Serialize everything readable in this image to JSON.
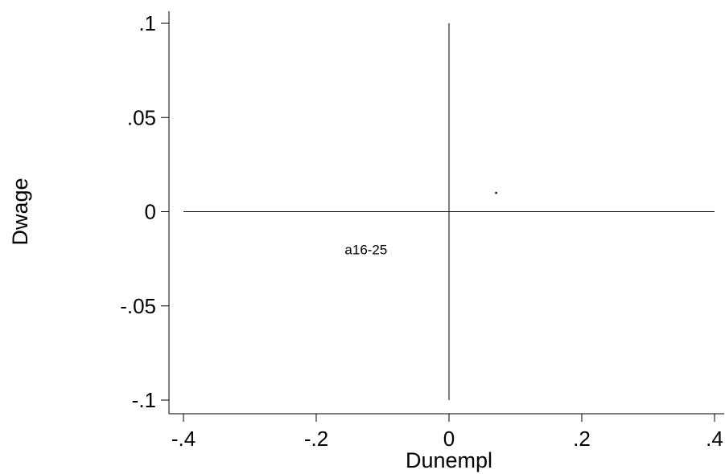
{
  "chart_data": {
    "type": "scatter",
    "xlabel": "Dunempl",
    "ylabel": "Dwage",
    "xlim": [
      -0.4,
      0.4
    ],
    "ylim": [
      -0.1,
      0.1
    ],
    "x_ticks": [
      {
        "value": -0.4,
        "label": "-.4"
      },
      {
        "value": -0.2,
        "label": "-.2"
      },
      {
        "value": 0,
        "label": "0"
      },
      {
        "value": 0.2,
        "label": ".2"
      },
      {
        "value": 0.4,
        "label": ".4"
      }
    ],
    "y_ticks": [
      {
        "value": 0.1,
        "label": ".1"
      },
      {
        "value": 0.05,
        "label": ".05"
      },
      {
        "value": 0,
        "label": "0"
      },
      {
        "value": -0.05,
        "label": "-.05"
      },
      {
        "value": -0.1,
        "label": "-.1"
      }
    ],
    "reference_lines": {
      "x": 0,
      "y": 0
    },
    "points": [
      {
        "x": 0.071,
        "y": 0.01
      }
    ],
    "annotations": [
      {
        "text": "a16-25",
        "x": -0.125,
        "y": -0.02
      }
    ],
    "grid": false,
    "legend": "none"
  }
}
